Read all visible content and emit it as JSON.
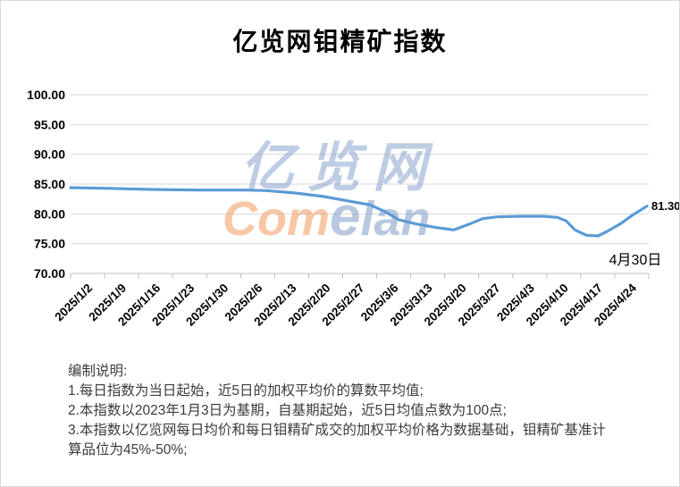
{
  "page": {
    "title": "亿览网钼精矿指数"
  },
  "chart_data": {
    "type": "line",
    "title": "亿览网钼精矿指数",
    "categories": [
      "2025/1/2",
      "2025/1/9",
      "2025/1/16",
      "2025/1/23",
      "2025/1/30",
      "2025/2/6",
      "2025/2/13",
      "2025/2/20",
      "2025/2/27",
      "2025/3/6",
      "2025/3/13",
      "2025/3/20",
      "2025/3/27",
      "2025/4/3",
      "2025/4/10",
      "2025/4/17",
      "2025/4/24"
    ],
    "series": [
      {
        "name": "钼精矿指数",
        "values": [
          84.4,
          84.3,
          84.1,
          84.0,
          84.0,
          84.0,
          83.6,
          82.9,
          81.9,
          79.4,
          77.8,
          77.8,
          79.4,
          79.6,
          78.8,
          76.3,
          79.7
        ]
      }
    ],
    "final_point": {
      "date_label": "4月30日",
      "value": 81.3
    },
    "end_label": "81.30",
    "annotation": "4月30日",
    "ylim": [
      70,
      100
    ],
    "ytick_step": 5,
    "ytick_decimals": 2,
    "xlabel": "",
    "ylabel": "",
    "grid": "horizontal",
    "legend": "none",
    "x_label_rotation": 45,
    "x_tick_count": 18,
    "line_points": [
      {
        "x": 0.0,
        "v": 84.4
      },
      {
        "x": 0.06,
        "v": 84.3
      },
      {
        "x": 0.14,
        "v": 84.1
      },
      {
        "x": 0.22,
        "v": 84.0
      },
      {
        "x": 0.3,
        "v": 84.0
      },
      {
        "x": 0.34,
        "v": 83.9
      },
      {
        "x": 0.39,
        "v": 83.5
      },
      {
        "x": 0.44,
        "v": 82.9
      },
      {
        "x": 0.48,
        "v": 82.2
      },
      {
        "x": 0.52,
        "v": 81.5
      },
      {
        "x": 0.545,
        "v": 80.4
      },
      {
        "x": 0.57,
        "v": 79.0
      },
      {
        "x": 0.6,
        "v": 78.3
      },
      {
        "x": 0.635,
        "v": 77.7
      },
      {
        "x": 0.665,
        "v": 77.3
      },
      {
        "x": 0.69,
        "v": 78.2
      },
      {
        "x": 0.715,
        "v": 79.2
      },
      {
        "x": 0.74,
        "v": 79.5
      },
      {
        "x": 0.78,
        "v": 79.6
      },
      {
        "x": 0.82,
        "v": 79.6
      },
      {
        "x": 0.845,
        "v": 79.4
      },
      {
        "x": 0.86,
        "v": 78.8
      },
      {
        "x": 0.875,
        "v": 77.3
      },
      {
        "x": 0.895,
        "v": 76.4
      },
      {
        "x": 0.915,
        "v": 76.3
      },
      {
        "x": 0.93,
        "v": 77.0
      },
      {
        "x": 0.955,
        "v": 78.4
      },
      {
        "x": 0.975,
        "v": 79.8
      },
      {
        "x": 1.0,
        "v": 81.3
      }
    ],
    "colors": {
      "line": "#5B9BD5",
      "grid": "#D9D9D9",
      "axis": "#BFBFBF",
      "label": "#000000"
    }
  },
  "watermark": {
    "cn": "亿览网",
    "en_part1": "Com",
    "en_part2": "e",
    "en_part3": "lan",
    "color_blue": "#7F9CC9",
    "color_orange": "#F29B5E"
  },
  "notes": {
    "heading": "编制说明:",
    "items": [
      "1.每日指数为当日起始，近5日的加权平均价的算数平均值;",
      "2.本指数以2023年1月3日为基期，自基期起始，近5日均值点数为100点;",
      "3.本指数以亿览网每日均价和每日钼精矿成交的加权平均价格为数据基础，钼精矿基准计算品位为45%-50%;"
    ]
  }
}
